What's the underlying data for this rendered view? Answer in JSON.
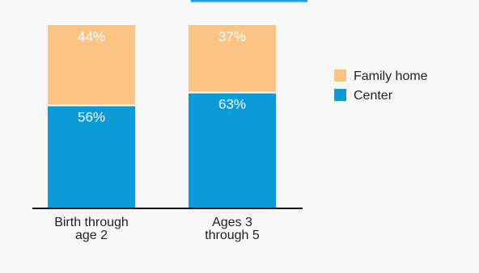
{
  "chart_data": {
    "type": "bar",
    "stacked": true,
    "percent": true,
    "categories": [
      [
        "Birth through",
        "age 2"
      ],
      [
        "Ages 3",
        "through 5"
      ]
    ],
    "series": [
      {
        "name": "Center",
        "values": [
          56,
          63
        ],
        "labels": [
          "56%",
          "63%"
        ],
        "color": "#0a9bd8"
      },
      {
        "name": "Family home",
        "values": [
          44,
          37
        ],
        "labels": [
          "44%",
          "37%"
        ],
        "color": "#f9c484"
      }
    ],
    "ylim": [
      0,
      100
    ],
    "title": "",
    "xlabel": "",
    "ylabel": "",
    "legend_position": "right",
    "legend_order": [
      "Family home",
      "Center"
    ],
    "grid": false
  }
}
